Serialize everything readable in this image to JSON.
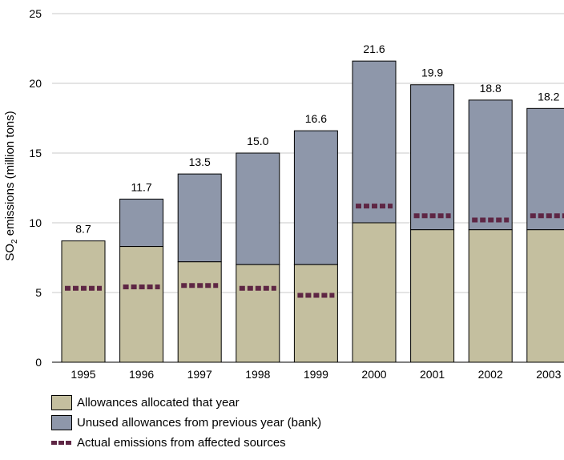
{
  "chart_data": {
    "type": "bar",
    "stacked": true,
    "categories": [
      "1995",
      "1996",
      "1997",
      "1998",
      "1999",
      "2000",
      "2001",
      "2002",
      "2003"
    ],
    "series": [
      {
        "name": "Allowances allocated that year",
        "values": [
          8.7,
          8.3,
          7.2,
          7.0,
          7.0,
          10.0,
          9.5,
          9.5,
          9.5
        ]
      },
      {
        "name": "Unused allowances from previous year (bank)",
        "values": [
          0,
          3.4,
          6.3,
          8.0,
          9.6,
          11.6,
          10.4,
          9.3,
          8.7
        ]
      }
    ],
    "totals": [
      "8.7",
      "11.7",
      "13.5",
      "15.0",
      "16.6",
      "21.6",
      "19.9",
      "18.8",
      "18.2"
    ],
    "emissions": {
      "name": "Actual emissions from affected sources",
      "values": [
        5.3,
        5.4,
        5.5,
        5.3,
        4.8,
        11.2,
        10.5,
        10.2,
        10.5
      ]
    },
    "ylabel": "SO",
    "ylabel_sub": "2",
    "ylabel_rest": " emissions (million tons)",
    "ylim": [
      0,
      25
    ],
    "yticks": [
      "0",
      "5",
      "10",
      "15",
      "20",
      "25"
    ],
    "grid": true,
    "colors": {
      "allocated": "#c4bf9f",
      "bank": "#8e97aa",
      "emissions": "#5e2644",
      "grid": "#c8c8c8"
    }
  }
}
